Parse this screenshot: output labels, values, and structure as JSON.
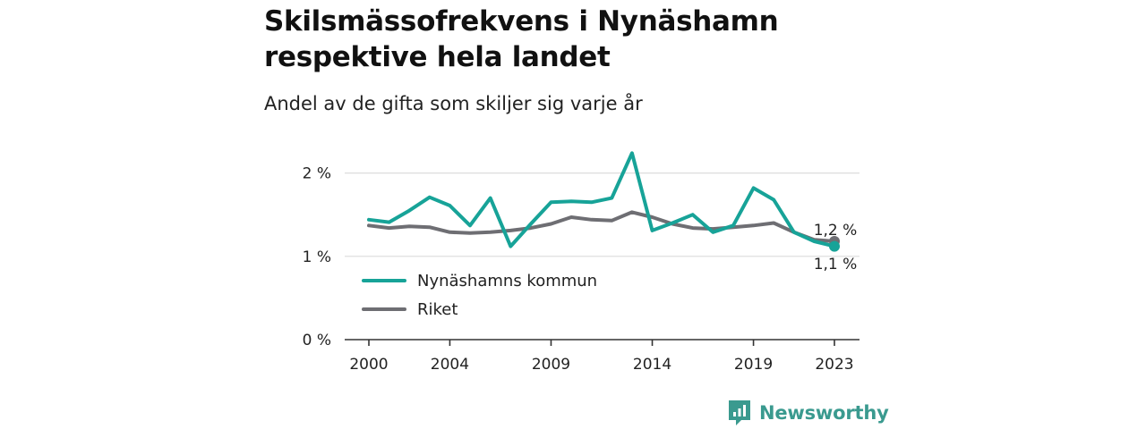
{
  "title": "Skilsmässofrekvens i Nynäshamn respektive hela landet",
  "subtitle": "Andel av de gifta som skiljer sig varje år",
  "brand": {
    "name": "Newsworthy",
    "icon": "newsworthy-logo-icon"
  },
  "colors": {
    "series1": "#17a398",
    "series2": "#6e6e73",
    "grid": "#dcdcdc",
    "axis": "#333333"
  },
  "chart_data": {
    "type": "line",
    "x": [
      2000,
      2001,
      2002,
      2003,
      2004,
      2005,
      2006,
      2007,
      2008,
      2009,
      2010,
      2011,
      2012,
      2013,
      2014,
      2015,
      2016,
      2017,
      2018,
      2019,
      2020,
      2021,
      2022,
      2023
    ],
    "x_ticks": [
      2000,
      2004,
      2009,
      2014,
      2019,
      2023
    ],
    "x_tick_labels": [
      "2000",
      "2004",
      "2009",
      "2014",
      "2019",
      "2023"
    ],
    "ylim": [
      0,
      2.2
    ],
    "y_ticks": [
      0,
      1,
      2
    ],
    "y_tick_labels": [
      "0 %",
      "1 %",
      "2 %"
    ],
    "grid": true,
    "legend_position": "bottom-left",
    "series": [
      {
        "name": "Nynäshamns kommun",
        "color": "#17a398",
        "values": [
          1.44,
          1.41,
          1.55,
          1.71,
          1.61,
          1.37,
          1.7,
          1.12,
          1.39,
          1.65,
          1.66,
          1.65,
          1.7,
          2.24,
          1.31,
          1.4,
          1.5,
          1.29,
          1.37,
          1.82,
          1.68,
          1.29,
          1.18,
          1.12
        ],
        "end_label": "1,1 %"
      },
      {
        "name": "Riket",
        "color": "#6e6e73",
        "values": [
          1.37,
          1.34,
          1.36,
          1.35,
          1.29,
          1.28,
          1.29,
          1.31,
          1.34,
          1.39,
          1.47,
          1.44,
          1.43,
          1.53,
          1.47,
          1.39,
          1.34,
          1.33,
          1.35,
          1.37,
          1.4,
          1.29,
          1.2,
          1.18
        ],
        "end_label": "1,2 %"
      }
    ]
  }
}
